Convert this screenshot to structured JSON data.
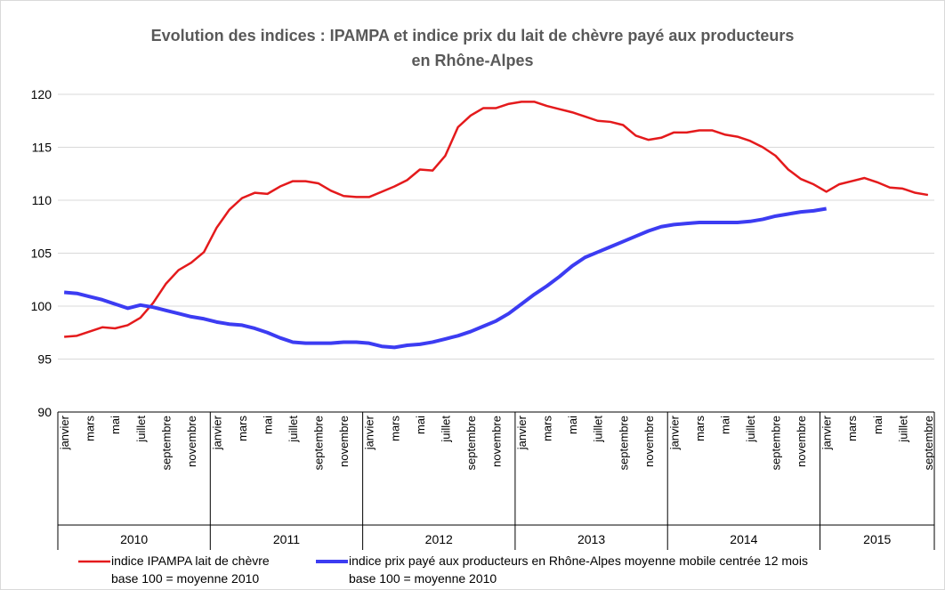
{
  "chart_data": {
    "type": "line",
    "title": "Evolution des indices : IPAMPA et indice prix du lait de chèvre payé aux producteurs\nen Rhône-Alpes",
    "categories": [
      "janvier",
      null,
      "mars",
      null,
      "mai",
      null,
      "juillet",
      null,
      "septembre",
      null,
      "novembre",
      null,
      "janvier",
      null,
      "mars",
      null,
      "mai",
      null,
      "juillet",
      null,
      "septembre",
      null,
      "novembre",
      null,
      "janvier",
      null,
      "mars",
      null,
      "mai",
      null,
      "juillet",
      null,
      "septembre",
      null,
      "novembre",
      null,
      "janvier",
      null,
      "mars",
      null,
      "mai",
      null,
      "juillet",
      null,
      "septembre",
      null,
      "novembre",
      null,
      "janvier",
      null,
      "mars",
      null,
      "mai",
      null,
      "juillet",
      null,
      "septembre",
      null,
      "novembre",
      null,
      "janvier",
      null,
      "mars",
      null,
      "mai",
      null,
      "juillet",
      null,
      "septembre"
    ],
    "category_groups": [
      {
        "label": "2010",
        "count": 12
      },
      {
        "label": "2011",
        "count": 12
      },
      {
        "label": "2012",
        "count": 12
      },
      {
        "label": "2013",
        "count": 12
      },
      {
        "label": "2014",
        "count": 12
      },
      {
        "label": "2015",
        "count": 9
      }
    ],
    "series": [
      {
        "name": "indice IPAMPA lait de chèvre\nbase 100 = moyenne 2010",
        "color": "#e41a1c",
        "values": [
          97.1,
          97.2,
          97.6,
          98.0,
          97.9,
          98.2,
          98.9,
          100.3,
          102.1,
          103.4,
          104.1,
          105.1,
          107.4,
          109.1,
          110.2,
          110.7,
          110.6,
          111.3,
          111.8,
          111.8,
          111.6,
          110.9,
          110.4,
          110.3,
          110.3,
          110.8,
          111.3,
          111.9,
          112.9,
          112.8,
          114.2,
          116.9,
          118.0,
          118.7,
          118.7,
          119.1,
          119.3,
          119.3,
          118.9,
          118.6,
          118.3,
          117.9,
          117.5,
          117.4,
          117.1,
          116.1,
          115.7,
          115.9,
          116.4,
          116.4,
          116.6,
          116.6,
          116.2,
          116.0,
          115.6,
          115.0,
          114.2,
          112.9,
          112.0,
          111.5,
          110.8,
          111.5,
          111.8,
          112.1,
          111.7,
          111.2,
          111.1,
          110.7,
          110.5
        ]
      },
      {
        "name": "indice prix payé aux producteurs en Rhône-Alpes moyenne mobile centrée 12 mois\nbase 100 = moyenne 2010",
        "color": "#3c3cf2",
        "values": [
          101.3,
          101.2,
          100.9,
          100.6,
          100.2,
          99.8,
          100.1,
          99.9,
          99.6,
          99.3,
          99.0,
          98.8,
          98.5,
          98.3,
          98.2,
          97.9,
          97.5,
          97.0,
          96.6,
          96.5,
          96.5,
          96.5,
          96.6,
          96.6,
          96.5,
          96.2,
          96.1,
          96.3,
          96.4,
          96.6,
          96.9,
          97.2,
          97.6,
          98.1,
          98.6,
          99.3,
          100.2,
          101.1,
          101.9,
          102.8,
          103.8,
          104.6,
          105.1,
          105.6,
          106.1,
          106.6,
          107.1,
          107.5,
          107.7,
          107.8,
          107.9,
          107.9,
          107.9,
          107.9,
          108.0,
          108.2,
          108.5,
          108.7,
          108.9,
          109.0,
          109.2,
          null,
          null,
          null,
          null,
          null,
          null,
          null,
          null
        ]
      }
    ],
    "ylim": [
      90,
      120
    ],
    "yticks": [
      90,
      95,
      100,
      105,
      110,
      115,
      120
    ],
    "grid": true
  }
}
